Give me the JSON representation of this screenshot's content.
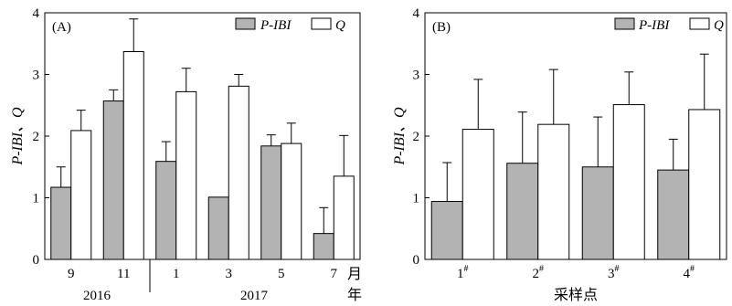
{
  "colors": {
    "pibi": "#b3b3b3",
    "q": "#ffffff",
    "stroke": "#000000"
  },
  "chart_data": [
    {
      "type": "bar",
      "panel_label": "(A)",
      "ylabel": "P-IBI、Q",
      "ylim": [
        0,
        4
      ],
      "yticks": [
        "0",
        "1",
        "2",
        "3",
        "4"
      ],
      "categories": [
        "9",
        "11",
        "1",
        "3",
        "5",
        "7"
      ],
      "x_unit": "月",
      "year_unit": "年",
      "year_groups": [
        {
          "label": "2016",
          "categories": [
            "9",
            "11"
          ]
        },
        {
          "label": "2017",
          "categories": [
            "1",
            "3",
            "5",
            "7"
          ]
        }
      ],
      "legend_position": "top-right",
      "series": [
        {
          "name": "P-IBI",
          "values": [
            1.17,
            2.57,
            1.59,
            1.01,
            1.84,
            0.42
          ],
          "errors": [
            0.33,
            0.18,
            0.32,
            0,
            0.18,
            0.42
          ]
        },
        {
          "name": "Q",
          "values": [
            2.09,
            3.37,
            2.72,
            2.81,
            1.88,
            1.35
          ],
          "errors": [
            0.33,
            0.53,
            0.38,
            0.19,
            0.33,
            0.66
          ]
        }
      ]
    },
    {
      "type": "bar",
      "panel_label": "(B)",
      "ylabel": "P-IBI、Q",
      "xlabel": "采样点",
      "ylim": [
        0,
        4
      ],
      "yticks": [
        "0",
        "1",
        "2",
        "3",
        "4"
      ],
      "categories": [
        "1#",
        "2#",
        "3#",
        "4#"
      ],
      "legend_position": "top-right",
      "series": [
        {
          "name": "P-IBI",
          "values": [
            0.94,
            1.56,
            1.5,
            1.45
          ],
          "errors": [
            0.63,
            0.83,
            0.81,
            0.5
          ]
        },
        {
          "name": "Q",
          "values": [
            2.11,
            2.19,
            2.51,
            2.43
          ],
          "errors": [
            0.81,
            0.89,
            0.53,
            0.9
          ]
        }
      ]
    }
  ]
}
